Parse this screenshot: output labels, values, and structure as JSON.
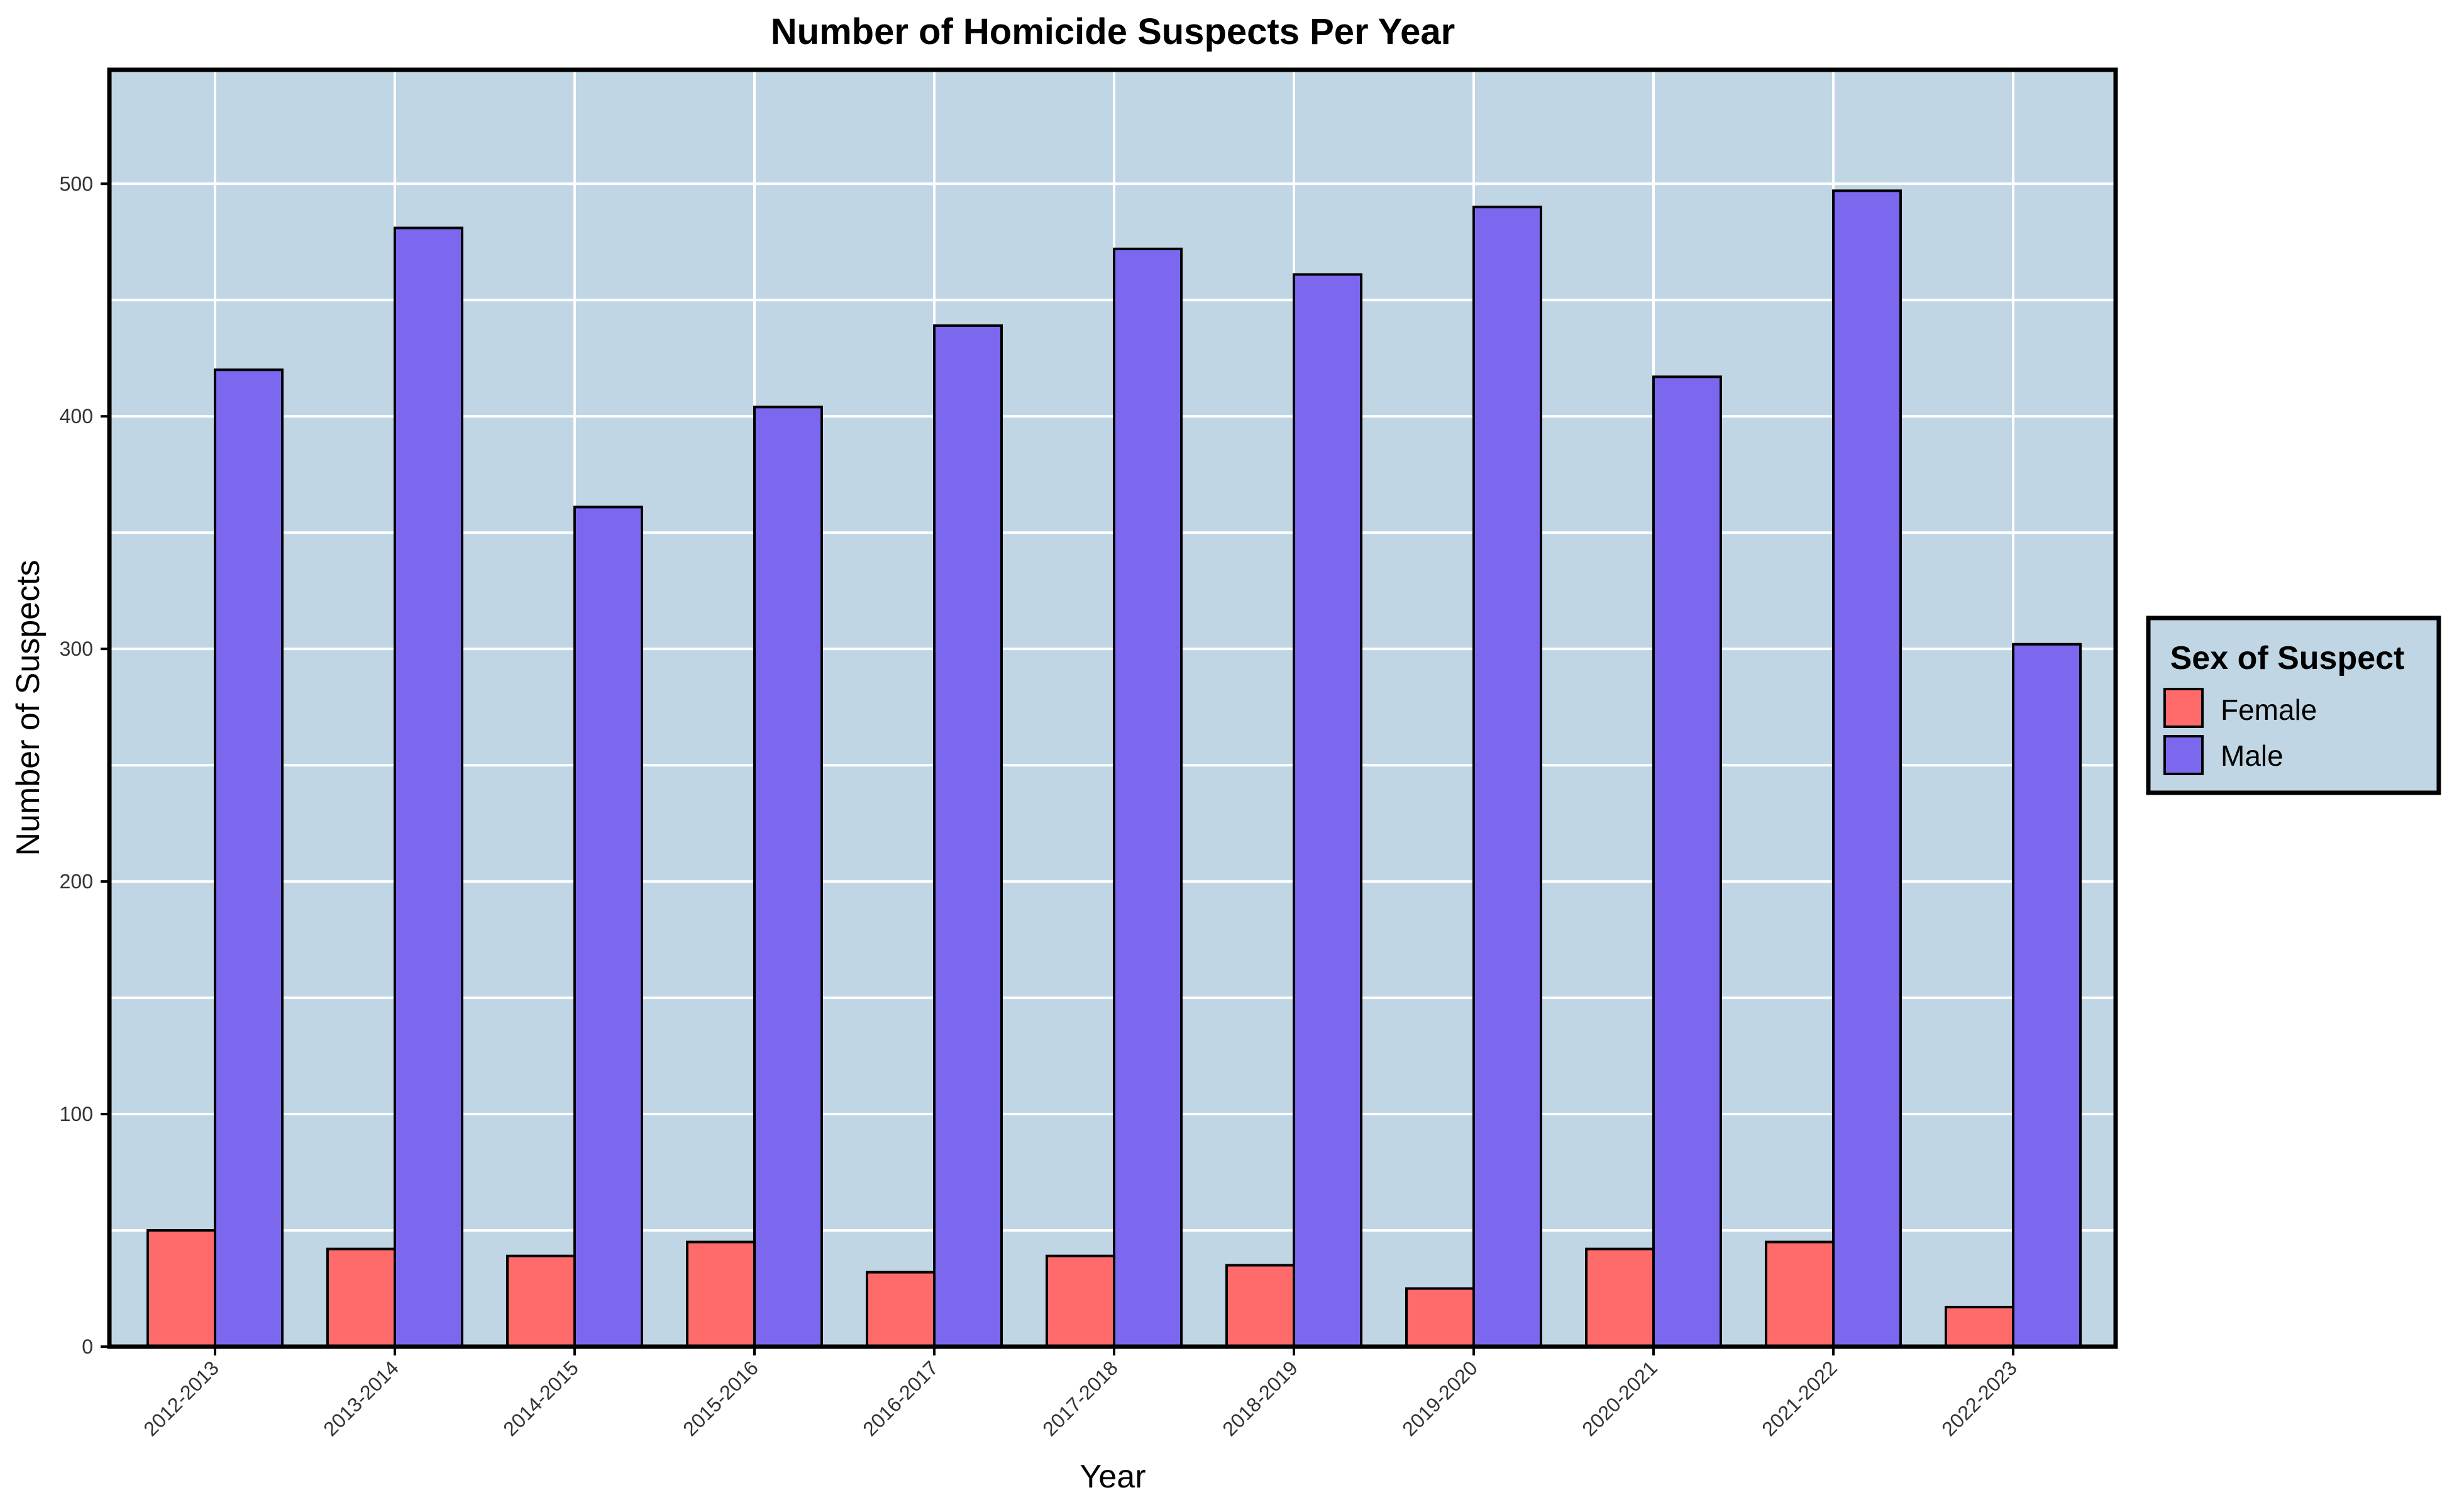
{
  "chart_data": {
    "type": "bar",
    "title": "Number of Homicide Suspects Per Year",
    "xlabel": "Year",
    "ylabel": "Number of Suspects",
    "categories": [
      "2012-2013",
      "2013-2014",
      "2014-2015",
      "2015-2016",
      "2016-2017",
      "2017-2018",
      "2018-2019",
      "2019-2020",
      "2020-2021",
      "2021-2022",
      "2022-2023"
    ],
    "series": [
      {
        "name": "Female",
        "color": "#ff6b6b",
        "values": [
          50,
          42,
          39,
          45,
          32,
          39,
          35,
          25,
          42,
          45,
          17
        ]
      },
      {
        "name": "Male",
        "color": "#7b68ee",
        "values": [
          420,
          481,
          361,
          404,
          439,
          472,
          461,
          490,
          417,
          497,
          302
        ]
      }
    ],
    "ylim": [
      0,
      549
    ],
    "yticks": [
      0,
      100,
      200,
      300,
      400,
      500
    ],
    "grid": true,
    "plot_background": "#c0d6e4",
    "legend": {
      "title": "Sex of Suspect",
      "placement": "right"
    }
  }
}
